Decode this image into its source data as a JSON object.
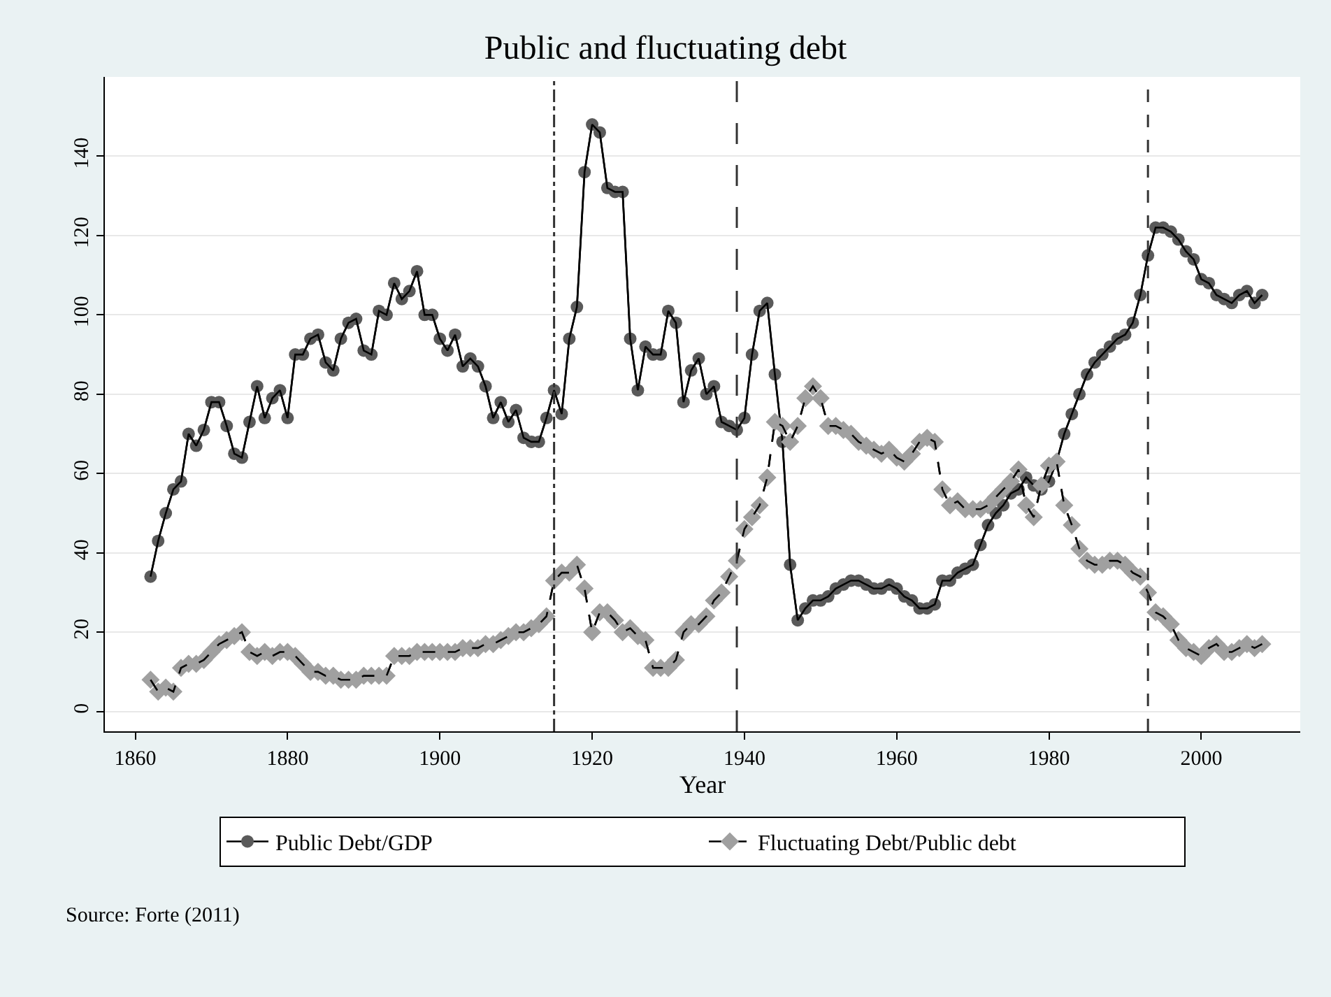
{
  "chart_data": {
    "type": "line",
    "title": "Public and fluctuating debt",
    "xlabel": "Year",
    "x": [
      1862,
      1863,
      1864,
      1865,
      1866,
      1867,
      1868,
      1869,
      1870,
      1871,
      1872,
      1873,
      1874,
      1875,
      1876,
      1877,
      1878,
      1879,
      1880,
      1881,
      1882,
      1883,
      1884,
      1885,
      1886,
      1887,
      1888,
      1889,
      1890,
      1891,
      1892,
      1893,
      1894,
      1895,
      1896,
      1897,
      1898,
      1899,
      1900,
      1901,
      1902,
      1903,
      1904,
      1905,
      1906,
      1907,
      1908,
      1909,
      1910,
      1911,
      1912,
      1913,
      1914,
      1915,
      1916,
      1917,
      1918,
      1919,
      1920,
      1921,
      1922,
      1923,
      1924,
      1925,
      1926,
      1927,
      1928,
      1929,
      1930,
      1931,
      1932,
      1933,
      1934,
      1935,
      1936,
      1937,
      1938,
      1939,
      1940,
      1941,
      1942,
      1943,
      1944,
      1945,
      1946,
      1947,
      1948,
      1949,
      1950,
      1951,
      1952,
      1953,
      1954,
      1955,
      1956,
      1957,
      1958,
      1959,
      1960,
      1961,
      1962,
      1963,
      1964,
      1965,
      1966,
      1967,
      1968,
      1969,
      1970,
      1971,
      1972,
      1973,
      1974,
      1975,
      1976,
      1977,
      1978,
      1979,
      1980,
      1981,
      1982,
      1983,
      1984,
      1985,
      1986,
      1987,
      1988,
      1989,
      1990,
      1991,
      1992,
      1993,
      1994,
      1995,
      1996,
      1997,
      1998,
      1999,
      2000,
      2001,
      2002,
      2003,
      2004,
      2005,
      2006,
      2007,
      2008
    ],
    "series": [
      {
        "name": "Public Debt/GDP",
        "color": "#5a5a5a",
        "marker": "circle",
        "line_style": "solid",
        "values": [
          34,
          43,
          50,
          56,
          58,
          70,
          67,
          71,
          78,
          78,
          72,
          65,
          64,
          73,
          82,
          74,
          79,
          81,
          74,
          90,
          90,
          94,
          95,
          88,
          86,
          94,
          98,
          99,
          91,
          90,
          101,
          100,
          108,
          104,
          106,
          111,
          100,
          100,
          94,
          91,
          95,
          87,
          89,
          87,
          82,
          74,
          78,
          73,
          76,
          69,
          68,
          68,
          74,
          81,
          75,
          94,
          102,
          136,
          148,
          146,
          132,
          131,
          131,
          94,
          81,
          92,
          90,
          90,
          101,
          98,
          78,
          86,
          89,
          80,
          82,
          73,
          72,
          71,
          74,
          90,
          101,
          103,
          85,
          68,
          37,
          23,
          26,
          28,
          28,
          29,
          31,
          32,
          33,
          33,
          32,
          31,
          31,
          32,
          31,
          29,
          28,
          26,
          26,
          27,
          33,
          33,
          35,
          36,
          37,
          42,
          47,
          50,
          52,
          55,
          56,
          59,
          57,
          56,
          58,
          63,
          70,
          75,
          80,
          85,
          88,
          90,
          92,
          94,
          95,
          98,
          105,
          115,
          122,
          122,
          121,
          119,
          116,
          114,
          109,
          108,
          105,
          104,
          103,
          105,
          106,
          103,
          105
        ]
      },
      {
        "name": "Fluctuating Debt/Public debt",
        "color": "#a0a0a0",
        "marker": "diamond",
        "line_style": "dashed",
        "values": [
          8,
          5,
          6,
          5,
          11,
          12,
          12,
          13,
          15,
          17,
          18,
          19,
          20,
          15,
          14,
          15,
          14,
          15,
          15,
          14,
          12,
          10,
          10,
          9,
          9,
          8,
          8,
          8,
          9,
          9,
          9,
          9,
          14,
          14,
          14,
          15,
          15,
          15,
          15,
          15,
          15,
          16,
          16,
          16,
          17,
          17,
          18,
          19,
          20,
          20,
          21,
          22,
          24,
          33,
          35,
          35,
          37,
          31,
          20,
          25,
          25,
          23,
          20,
          21,
          19,
          18,
          11,
          11,
          11,
          13,
          20,
          22,
          22,
          24,
          28,
          30,
          34,
          38,
          46,
          49,
          52,
          59,
          73,
          72,
          68,
          72,
          79,
          82,
          79,
          72,
          72,
          71,
          70,
          68,
          67,
          66,
          65,
          66,
          64,
          63,
          65,
          68,
          69,
          68,
          56,
          52,
          53,
          51,
          51,
          51,
          52,
          54,
          56,
          58,
          61,
          52,
          49,
          57,
          62,
          63,
          52,
          47,
          41,
          38,
          37,
          37,
          38,
          38,
          37,
          35,
          34,
          30,
          25,
          24,
          22,
          18,
          16,
          15,
          14,
          16,
          17,
          15,
          15,
          16,
          17,
          16,
          17
        ]
      }
    ],
    "xlim": [
      1856,
      2013
    ],
    "xticks": [
      1860,
      1880,
      1900,
      1920,
      1940,
      1960,
      1980,
      2000
    ],
    "ylim": [
      -5,
      160
    ],
    "yticks": [
      0,
      20,
      40,
      60,
      80,
      100,
      120,
      140
    ],
    "grid": "y",
    "legend": "bottom",
    "ref_lines": [
      {
        "axis": "x",
        "value": 1915,
        "line_style": "dashdot"
      },
      {
        "axis": "x",
        "value": 1939,
        "line_style": "longdash"
      },
      {
        "axis": "x",
        "value": 1993,
        "line_style": "dashed"
      }
    ],
    "annotations": [
      "Source: Forte (2011)"
    ]
  }
}
